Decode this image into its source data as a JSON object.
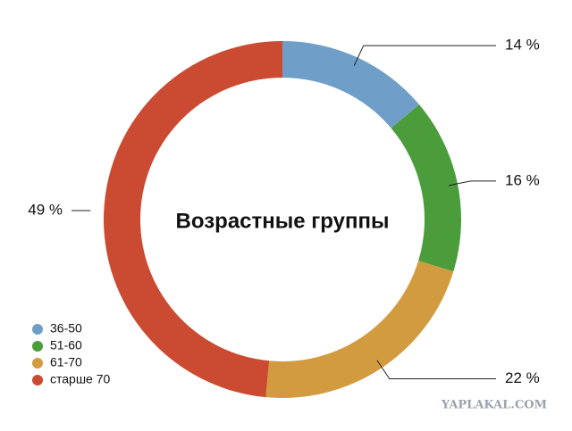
{
  "chart_data": {
    "type": "donut",
    "title": "Возрастные группы",
    "categories": [
      "36-50",
      "51-60",
      "61-70",
      "старше 70"
    ],
    "values": [
      14,
      16,
      22,
      49
    ],
    "value_labels": [
      "14 %",
      "16 %",
      "22 %",
      "49 %"
    ],
    "colors": [
      "#6f9fc8",
      "#4b9c3a",
      "#d39b40",
      "#cb4a32"
    ],
    "legend": "bottom-left"
  },
  "watermark": "YAPLAKAL.COM"
}
